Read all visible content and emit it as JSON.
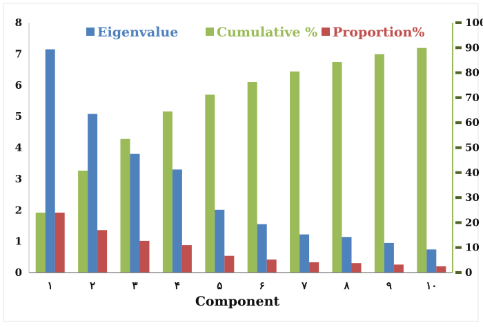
{
  "chart_data": {
    "type": "bar",
    "categories": [
      "۱",
      "۲",
      "۳",
      "۴",
      "۵",
      "۶",
      "۷",
      "۸",
      "۹",
      "۱۰"
    ],
    "series": [
      {
        "name": "Eigenvalue",
        "axis": "left",
        "color": "#4f81bd",
        "values": [
          7.15,
          5.08,
          3.8,
          3.3,
          2.01,
          1.55,
          1.22,
          1.14,
          0.95,
          0.74
        ]
      },
      {
        "name": "Cumulative %",
        "axis": "right",
        "color": "#9bbb59",
        "values": [
          24,
          40.8,
          53.5,
          64.5,
          71.2,
          76.3,
          80.5,
          84.3,
          87.4,
          89.9
        ]
      },
      {
        "name": "Proportion%",
        "axis": "right",
        "color": "#c0504d",
        "values": [
          24,
          17,
          12.7,
          11,
          6.7,
          5.2,
          4.1,
          3.8,
          3.2,
          2.5
        ]
      }
    ],
    "xlabel": "Component",
    "ylabel": "",
    "y2label": "",
    "ylim": [
      0,
      8
    ],
    "y2lim": [
      0,
      100
    ],
    "yticks": [
      "0",
      "1",
      "2",
      "3",
      "4",
      "5",
      "6",
      "7",
      "8"
    ],
    "y2ticks": [
      "0",
      "10",
      "20",
      "30",
      "40",
      "50",
      "60",
      "70",
      "80",
      "90",
      "100"
    ],
    "grid": false,
    "legend_position": "top"
  }
}
